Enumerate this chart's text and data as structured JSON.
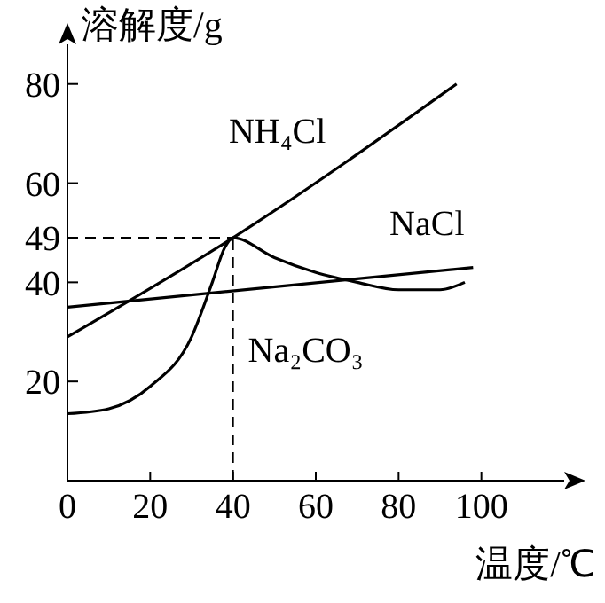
{
  "chart_data": {
    "type": "line",
    "xlabel": "温度/℃",
    "ylabel": "溶解度/g",
    "xlim": [
      0,
      120
    ],
    "ylim": [
      0,
      88
    ],
    "xticks": [
      0,
      20,
      40,
      60,
      80,
      100
    ],
    "yticks": [
      20,
      40,
      49,
      60,
      80
    ],
    "grid": false,
    "legend": false,
    "marker": "none",
    "line_style": "solid",
    "series": [
      {
        "name": "NH₄Cl",
        "color": "#000000",
        "x": [
          0,
          40,
          94
        ],
        "values": [
          29,
          49,
          80
        ]
      },
      {
        "name": "NaCl",
        "color": "#000000",
        "x": [
          0,
          98
        ],
        "values": [
          35,
          43
        ]
      },
      {
        "name": "Na₂CO₃",
        "color": "#000000",
        "x": [
          0,
          10,
          20,
          30,
          35,
          38,
          40,
          50,
          60,
          70,
          80,
          90,
          96
        ],
        "values": [
          13.5,
          14.5,
          19,
          29,
          40,
          47,
          49,
          45,
          42,
          40,
          38.5,
          38.5,
          40
        ]
      }
    ],
    "ref_lines": [
      {
        "axis": "y",
        "value": 49,
        "line_style": "dashed"
      },
      {
        "axis": "x",
        "value": 40,
        "line_style": "dashed"
      }
    ]
  }
}
